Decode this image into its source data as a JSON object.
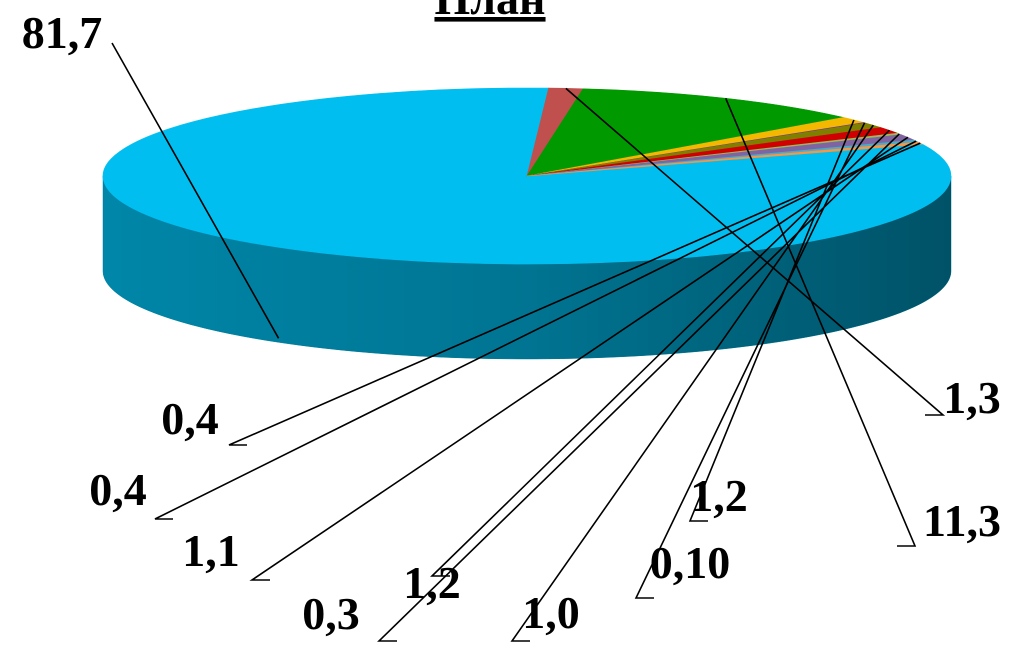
{
  "chart_data": {
    "type": "pie",
    "title": "План",
    "style": "3d",
    "slices": [
      {
        "label": "81,7",
        "value": 81.7,
        "color": "#00bff0"
      },
      {
        "label": "1,3",
        "value": 1.3,
        "color": "#c0504d"
      },
      {
        "label": "11,3",
        "value": 11.3,
        "color": "#009a00"
      },
      {
        "label": "1,2",
        "value": 1.2,
        "color": "#f5b800"
      },
      {
        "label": "0,10",
        "value": 0.1,
        "color": "#7030a0"
      },
      {
        "label": "1,0",
        "value": 1.0,
        "color": "#808000"
      },
      {
        "label": "1,2",
        "value": 1.2,
        "color": "#d00000"
      },
      {
        "label": "0,3",
        "value": 0.3,
        "color": "#9bbb59"
      },
      {
        "label": "1,1",
        "value": 1.1,
        "color": "#8064a2"
      },
      {
        "label": "0,4",
        "value": 0.4,
        "color": "#4bacc6"
      },
      {
        "label": "0,4",
        "value": 0.4,
        "color": "#f79646"
      }
    ]
  }
}
